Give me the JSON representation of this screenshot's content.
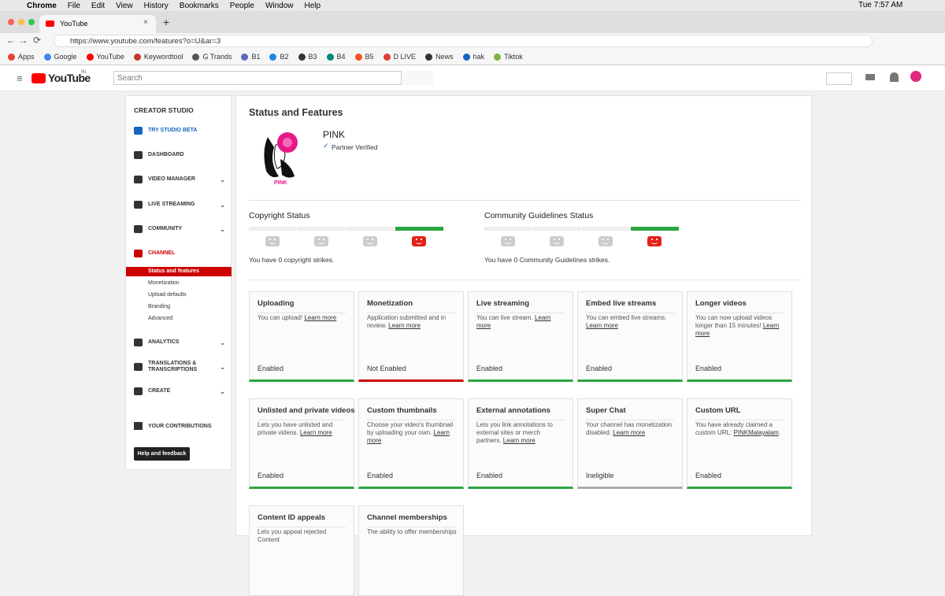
{
  "mac_menu": {
    "items": [
      "Chrome",
      "File",
      "Edit",
      "View",
      "History",
      "Bookmarks",
      "People",
      "Window",
      "Help"
    ],
    "clock": "Tue 7:57 AM"
  },
  "browser": {
    "tab_title": "YouTube",
    "url": "https://www.youtube.com/features?o=U&ar=3",
    "bookmarks": [
      "Apps",
      "Google",
      "YouTube",
      "Keywordtool",
      "G Trands",
      "B1",
      "B2",
      "B3",
      "B4",
      "B5",
      "D LIVE",
      "News",
      "hak",
      "Tiktok"
    ]
  },
  "header": {
    "logo": "YouTube",
    "region": "IN",
    "search_placeholder": "Search"
  },
  "sidebar": {
    "title": "CREATOR STUDIO",
    "items": [
      {
        "label": "TRY STUDIO BETA",
        "expand": false
      },
      {
        "label": "DASHBOARD",
        "expand": false
      },
      {
        "label": "VIDEO MANAGER",
        "expand": true
      },
      {
        "label": "LIVE STREAMING",
        "expand": true
      },
      {
        "label": "COMMUNITY",
        "expand": true
      },
      {
        "label": "CHANNEL",
        "expand": false
      }
    ],
    "subitems": [
      "Status and features",
      "Monetization",
      "Upload defaults",
      "Branding",
      "Advanced"
    ],
    "more_items": [
      {
        "label": "ANALYTICS",
        "expand": true
      },
      {
        "label": "TRANSLATIONS & TRANSCRIPTIONS",
        "expand": true
      },
      {
        "label": "CREATE",
        "expand": true
      }
    ],
    "contributions": "YOUR CONTRIBUTIONS",
    "help": "Help and feedback"
  },
  "main": {
    "title": "Status and Features",
    "channel": "PINK",
    "logo_text": "PINK",
    "verified": "Partner Verified",
    "copyright": {
      "title": "Copyright Status",
      "text": "You have 0 copyright strikes."
    },
    "community": {
      "title": "Community Guidelines Status",
      "text": "You have 0 Community Guidelines strikes."
    },
    "cards": [
      {
        "title": "Uploading",
        "desc": "You can upload! ",
        "link": "Learn more",
        "status": "Enabled",
        "color": "#2ba640"
      },
      {
        "title": "Monetization",
        "desc": "Application submitted and in review. ",
        "link": "Learn more",
        "status": "Not Enabled",
        "color": "#cc0000"
      },
      {
        "title": "Live streaming",
        "desc": "You can live stream. ",
        "link": "Learn more",
        "status": "Enabled",
        "color": "#2ba640"
      },
      {
        "title": "Embed live streams",
        "desc": "You can embed live streams. ",
        "link": "Learn more",
        "status": "Enabled",
        "color": "#2ba640"
      },
      {
        "title": "Longer videos",
        "desc": "You can now upload videos longer than 15 minutes! ",
        "link": "Learn more",
        "status": "Enabled",
        "color": "#2ba640"
      },
      {
        "title": "Unlisted and private videos",
        "desc": "Lets you have unlisted and private videos. ",
        "link": "Learn more",
        "status": "Enabled",
        "color": "#2ba640"
      },
      {
        "title": "Custom thumbnails",
        "desc": "Choose your video's thumbnail by uploading your own. ",
        "link": "Learn more",
        "status": "Enabled",
        "color": "#2ba640"
      },
      {
        "title": "External annotations",
        "desc": "Lets you link annotations to external sites or merch partners. ",
        "link": "Learn more",
        "status": "Enabled",
        "color": "#2ba640"
      },
      {
        "title": "Super Chat",
        "desc": "Your channel has monetization disabled. ",
        "link": "Learn more",
        "status": "Ineligible",
        "color": "#aaaaaa"
      },
      {
        "title": "Custom URL",
        "desc": "You have already claimed a custom URL: ",
        "link": "PINKMalayalam",
        "after": ".",
        "status": "Enabled",
        "color": "#2ba640"
      },
      {
        "title": "Content ID appeals",
        "desc": "Lets you appeal rejected Content"
      },
      {
        "title": "Channel memberships",
        "desc": "The ability to offer memberships"
      }
    ]
  }
}
